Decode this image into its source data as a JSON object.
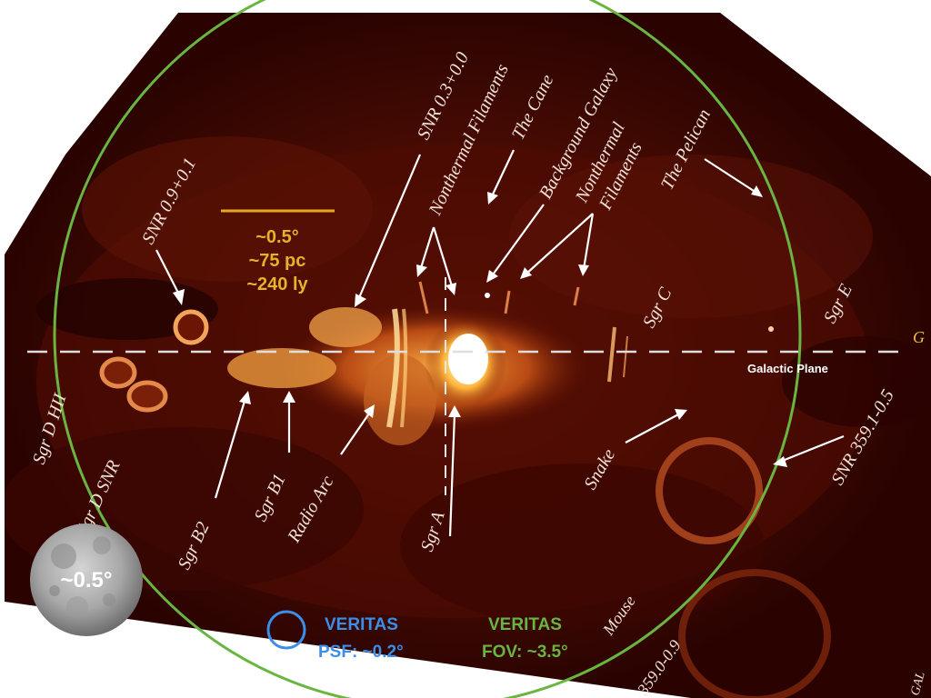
{
  "image": {
    "title_hidden": "Galactic Center radio image with VERITAS scale overlays",
    "colors": {
      "background": "#ffffff",
      "map_dark": "#200000",
      "map_mid": "#6a1405",
      "glow": "#ffcf66",
      "scale_bar": "#e6a823",
      "scale_text": "#e6b22a",
      "psf": "#3c8ee8",
      "fov": "#6ab53f",
      "plane_line": "#dcdcdc"
    }
  },
  "scale_bar": {
    "line1": "~0.5°",
    "line2": "~75 pc",
    "line3": "~240 ly"
  },
  "moon": {
    "label": "~0.5°"
  },
  "psf": {
    "title": "VERITAS",
    "value": "PSF: ~0.2°"
  },
  "fov": {
    "title": "VERITAS",
    "value": "FOV: ~3.5°"
  },
  "plane": {
    "label": "Galactic Plane",
    "edge_letter": "G"
  },
  "sources": [
    {
      "id": "snr-09",
      "label": "SNR 0.9+0.1"
    },
    {
      "id": "sgr-d-hii",
      "label": "Sgr D HII"
    },
    {
      "id": "sgr-d-snr",
      "label": "Sgr D SNR"
    },
    {
      "id": "sgr-b2",
      "label": "Sgr B2"
    },
    {
      "id": "sgr-b1",
      "label": "Sgr B1"
    },
    {
      "id": "radio-arc",
      "label": "Radio Arc"
    },
    {
      "id": "sgr-a",
      "label": "Sgr A"
    },
    {
      "id": "snr-03",
      "label": "SNR 0.3+0.0"
    },
    {
      "id": "nt-fil-1",
      "label": "Nonthermal Filaments"
    },
    {
      "id": "cane",
      "label": "The Cane"
    },
    {
      "id": "bg-gal",
      "label": "Background Galaxy"
    },
    {
      "id": "nt-fil-2a",
      "label": "Nonthermal"
    },
    {
      "id": "nt-fil-2b",
      "label": "Filaments"
    },
    {
      "id": "pelican",
      "label": "The Pelican"
    },
    {
      "id": "sgr-c",
      "label": "Sgr C"
    },
    {
      "id": "sgr-e",
      "label": "Sgr E"
    },
    {
      "id": "snake",
      "label": "Snake"
    },
    {
      "id": "snr-359",
      "label": "SNR 359.1-0.5"
    },
    {
      "id": "mouse",
      "label": "Mouse"
    },
    {
      "id": "g359",
      "label": "359.0-0.9"
    },
    {
      "id": "gal-edge",
      "label": "GAL"
    }
  ]
}
